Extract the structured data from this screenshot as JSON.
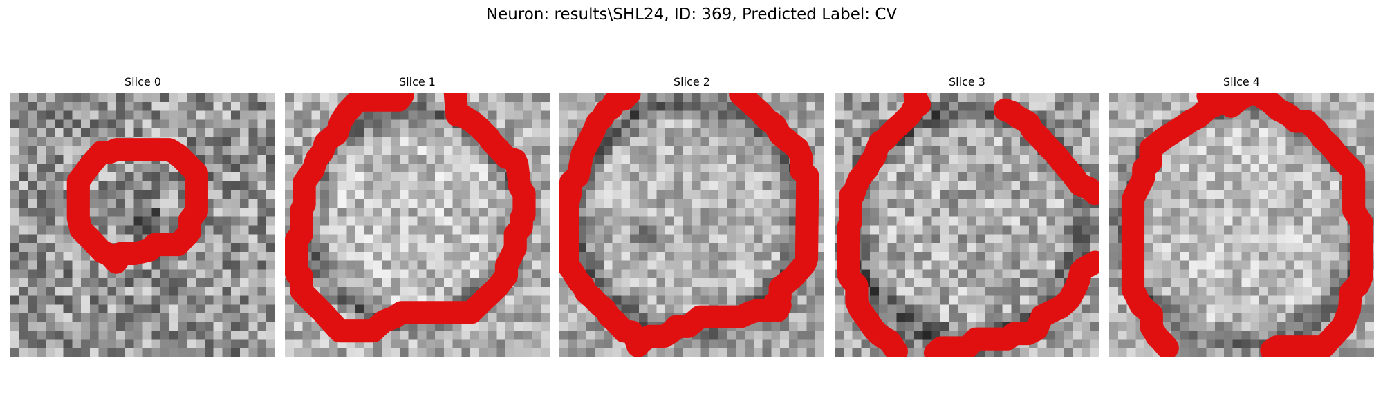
{
  "figure": {
    "title": "Neuron: results\\SHL24, ID: 369, Predicted Label: CV"
  },
  "colors": {
    "contour": "#e01010",
    "background": "#ffffff"
  },
  "slices": [
    {
      "label": "Slice 0"
    },
    {
      "label": "Slice 1"
    },
    {
      "label": "Slice 2"
    },
    {
      "label": "Slice 3"
    },
    {
      "label": "Slice 4"
    }
  ]
}
